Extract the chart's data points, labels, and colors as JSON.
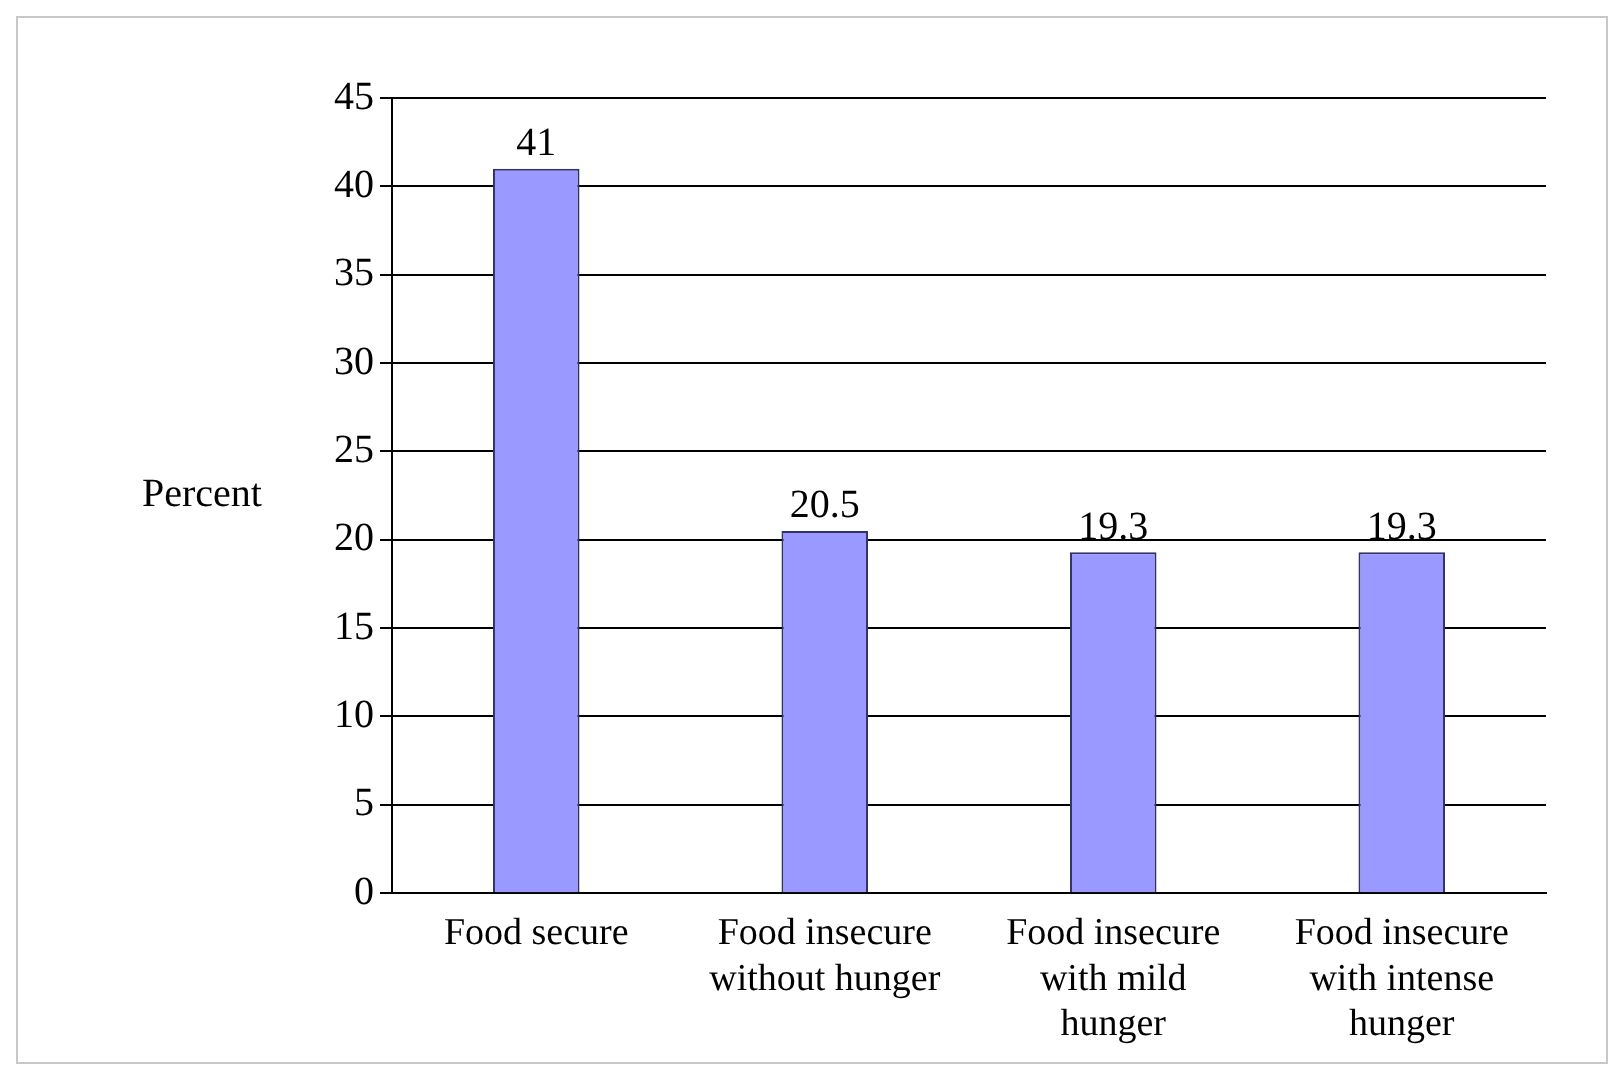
{
  "chart_data": {
    "type": "bar",
    "ylabel": "Percent",
    "categories": [
      "Food secure",
      "Food insecure without hunger",
      "Food insecure with mild hunger",
      "Food insecure with intense hunger"
    ],
    "values": [
      41,
      20.5,
      19.3,
      19.3
    ],
    "color": "#9999ff",
    "ylim": [
      0,
      45
    ],
    "yticks": [
      0,
      5,
      10,
      15,
      20,
      25,
      30,
      35,
      40,
      45
    ],
    "grid": "y",
    "data_labels": true,
    "legend": false
  }
}
